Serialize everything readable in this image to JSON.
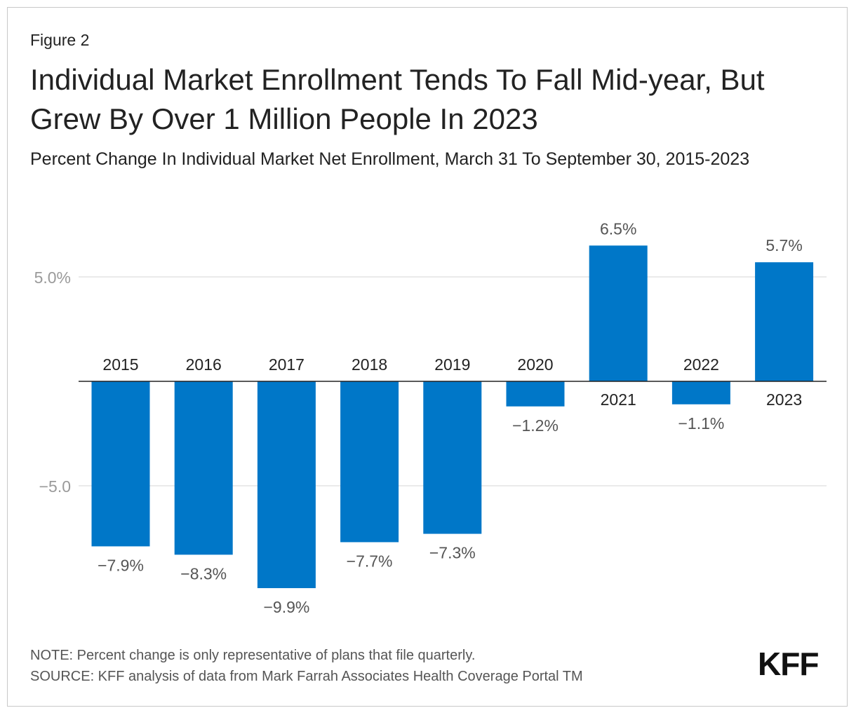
{
  "figure_label": "Figure 2",
  "title": "Individual Market Enrollment Tends To Fall Mid-year, But Grew By Over 1 Million People In 2023",
  "subtitle": "Percent Change In Individual Market Net Enrollment, March 31 To September 30, 2015-2023",
  "note": "NOTE: Percent change is only representative of plans that file quarterly.",
  "source": "SOURCE: KFF analysis of data from Mark Farrah Associates Health Coverage Portal TM",
  "logo": "KFF",
  "colors": {
    "bar": "#0077c8",
    "grid": "#e3e3e3",
    "axis_label": "#9a9a9a",
    "value_label": "#555555"
  },
  "chart_data": {
    "type": "bar",
    "categories": [
      "2015",
      "2016",
      "2017",
      "2018",
      "2019",
      "2020",
      "2021",
      "2022",
      "2023"
    ],
    "values": [
      -7.9,
      -8.3,
      -9.9,
      -7.7,
      -7.3,
      -1.2,
      6.5,
      -1.1,
      5.7
    ],
    "value_labels": [
      "−7.9%",
      "−8.3%",
      "−9.9%",
      "−7.7%",
      "−7.3%",
      "−1.2%",
      "6.5%",
      "−1.1%",
      "5.7%"
    ],
    "yticks": [
      5.0,
      -5.0
    ],
    "ytick_labels": [
      "5.0%",
      "−5.0"
    ],
    "title": "Individual Market Enrollment Tends To Fall Mid-year, But Grew By Over 1 Million People In 2023",
    "xlabel": "",
    "ylabel": "",
    "grid": true
  }
}
